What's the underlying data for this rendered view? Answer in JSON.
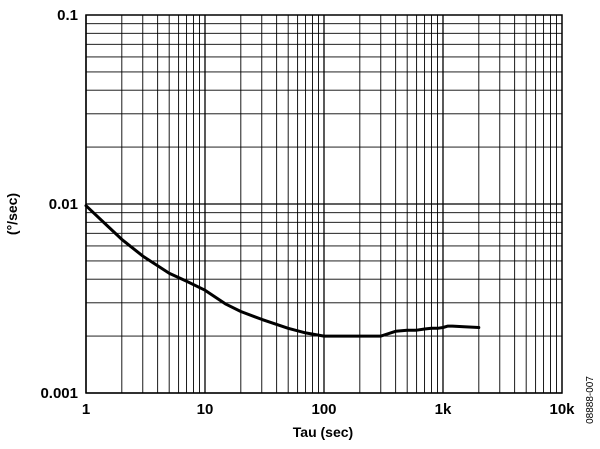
{
  "chart_data": {
    "type": "line",
    "title": "",
    "xlabel": "Tau (sec)",
    "ylabel": "(°/sec)",
    "x_scale": "log",
    "y_scale": "log",
    "xlim": [
      1,
      10000
    ],
    "ylim": [
      0.001,
      0.1
    ],
    "grid": true,
    "x_ticks": [
      {
        "value": 1,
        "label": "1"
      },
      {
        "value": 10,
        "label": "10"
      },
      {
        "value": 100,
        "label": "100"
      },
      {
        "value": 1000,
        "label": "1k"
      },
      {
        "value": 10000,
        "label": "10k"
      }
    ],
    "y_ticks": [
      {
        "value": 0.001,
        "label": "0.001"
      },
      {
        "value": 0.01,
        "label": "0.01"
      },
      {
        "value": 0.1,
        "label": "0.1"
      }
    ],
    "series": [
      {
        "x": [
          1,
          1.5,
          2,
          3,
          5,
          7,
          10,
          15,
          20,
          30,
          50,
          70,
          100,
          150,
          200,
          300,
          400,
          500,
          600,
          700,
          800,
          900,
          1000,
          1100,
          1200,
          1500,
          2000
        ],
        "y": [
          0.0098,
          0.0077,
          0.0065,
          0.0053,
          0.0043,
          0.0039,
          0.0035,
          0.00295,
          0.0027,
          0.00245,
          0.0022,
          0.00208,
          0.002,
          0.002,
          0.002,
          0.002,
          0.00212,
          0.00215,
          0.00215,
          0.00218,
          0.0022,
          0.0022,
          0.00222,
          0.00226,
          0.00226,
          0.00224,
          0.00222
        ],
        "color": "#000000"
      }
    ]
  },
  "figure_id": "08888-007"
}
